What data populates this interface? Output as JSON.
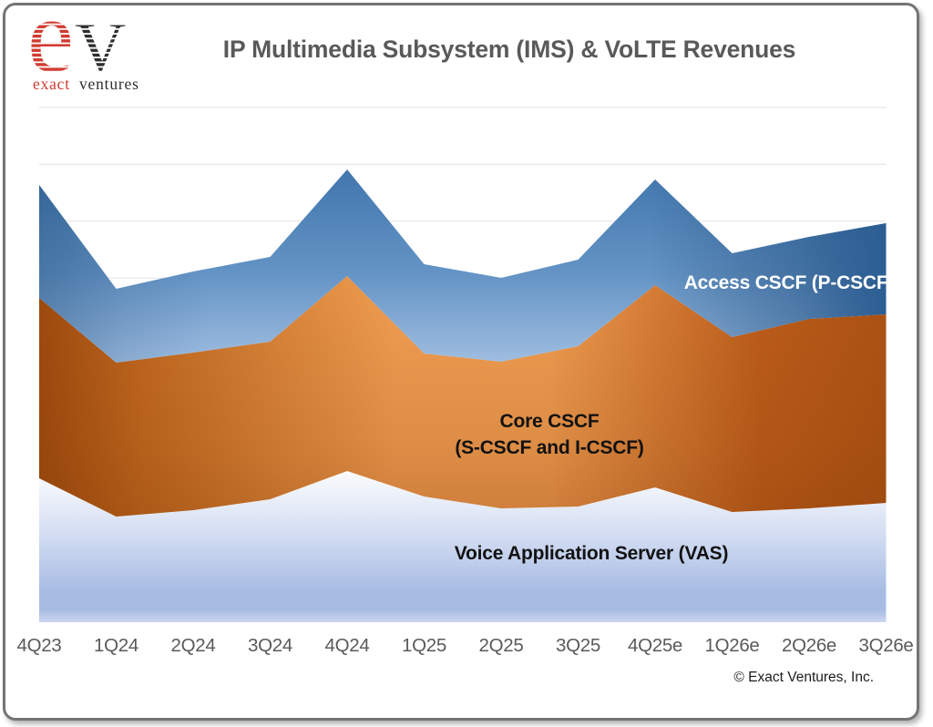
{
  "window": {
    "border_color": "#747474",
    "background": "#ffffff"
  },
  "logo": {
    "mark_e": "e",
    "mark_v": "V",
    "tagline_word1": "exact",
    "tagline_word2": "ventures",
    "red": "#d23b31",
    "dark": "#2e2e2e"
  },
  "header": {
    "title": "IP Multimedia Subsystem (IMS) & VoLTE Revenues",
    "title_color": "#595959"
  },
  "labels": {
    "access": "Access CSCF (P-CSCF)",
    "core_line1": "Core CSCF",
    "core_line2": "(S-CSCF and I-CSCF)",
    "vas": "Voice Application Server (VAS)"
  },
  "footer": {
    "copyright": "© Exact Ventures, Inc."
  },
  "chart_data": {
    "type": "area",
    "stacked": true,
    "title": "IP Multimedia Subsystem (IMS) & VoLTE Revenues",
    "xlabel": "",
    "ylabel": "",
    "y_axis_note": "no y-axis tick values shown in source; values are relative revenue units estimated from pixel heights of each stacked band",
    "grid": "horizontal gridlines only, 4 visible",
    "gridline_color": "#e7e7e7",
    "legend": "inline text labels inside each band",
    "categories": [
      "4Q23",
      "1Q24",
      "2Q24",
      "3Q24",
      "4Q24",
      "1Q25",
      "2Q25",
      "3Q25",
      "4Q25e",
      "1Q26e",
      "2Q26e",
      "3Q26e"
    ],
    "series": [
      {
        "name": "Voice Application Server (VAS)",
        "values": [
          158,
          116,
          123,
          135,
          166,
          138,
          125,
          127,
          148,
          121,
          125,
          131
        ],
        "fill": "vertical gradient white to periwinkle blue",
        "colors": [
          "#ffffff",
          "#d3ddf2",
          "#a8bce3",
          "#ccd7f0"
        ]
      },
      {
        "name": "Core CSCF (S-CSCF and I-CSCF)",
        "values": [
          198,
          169,
          173,
          173,
          214,
          157,
          161,
          176,
          222,
          192,
          208,
          207
        ],
        "fill": "horizontal gradient dark rust / light orange / dark rust",
        "colors": [
          "#9d4a0e",
          "#c0681f",
          "#f09e52",
          "#bc5d1b",
          "#ad5314"
        ]
      },
      {
        "name": "Access CSCF (P-CSCF)",
        "values": [
          124,
          81,
          89,
          93,
          117,
          98,
          92,
          95,
          116,
          92,
          90,
          100
        ],
        "fill": "blue gradient, light at lower center, darkest at right edge",
        "colors": [
          "#4176ad",
          "#6494c5",
          "#a9c4e5",
          "#2b5e93"
        ]
      }
    ],
    "totals": [
      480,
      366,
      385,
      401,
      497,
      393,
      378,
      398,
      486,
      405,
      423,
      438
    ],
    "peaks_at": [
      "4Q24",
      "4Q25e"
    ],
    "troughs_at": [
      "1Q24",
      "2Q25"
    ]
  }
}
